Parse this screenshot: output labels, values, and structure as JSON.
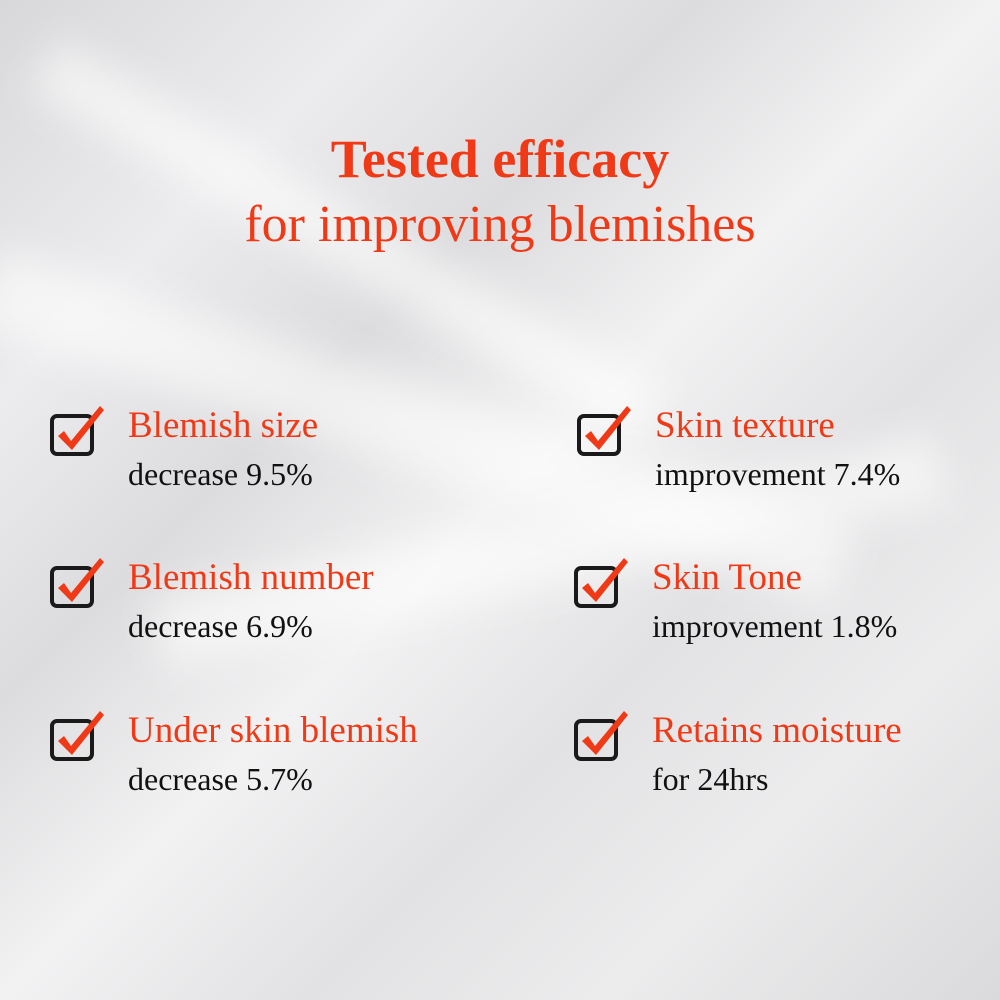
{
  "title": {
    "line1": "Tested efficacy",
    "line2": "for improving blemishes"
  },
  "colors": {
    "accent": "#f03a17",
    "text": "#111111",
    "checkbox_border": "#1a1a1a"
  },
  "items": [
    {
      "icon": "checkbox-checked-icon",
      "label": "Blemish size",
      "value": "decrease 9.5%"
    },
    {
      "icon": "checkbox-checked-icon",
      "label": "Skin texture",
      "value": "improvement 7.4%"
    },
    {
      "icon": "checkbox-checked-icon",
      "label": "Blemish number",
      "value": "decrease 6.9%"
    },
    {
      "icon": "checkbox-checked-icon",
      "label": "Skin Tone",
      "value": "improvement 1.8%"
    },
    {
      "icon": "checkbox-checked-icon",
      "label": "Under skin blemish",
      "value": "decrease 5.7%"
    },
    {
      "icon": "checkbox-checked-icon",
      "label": "Retains moisture",
      "value": "for 24hrs"
    }
  ]
}
